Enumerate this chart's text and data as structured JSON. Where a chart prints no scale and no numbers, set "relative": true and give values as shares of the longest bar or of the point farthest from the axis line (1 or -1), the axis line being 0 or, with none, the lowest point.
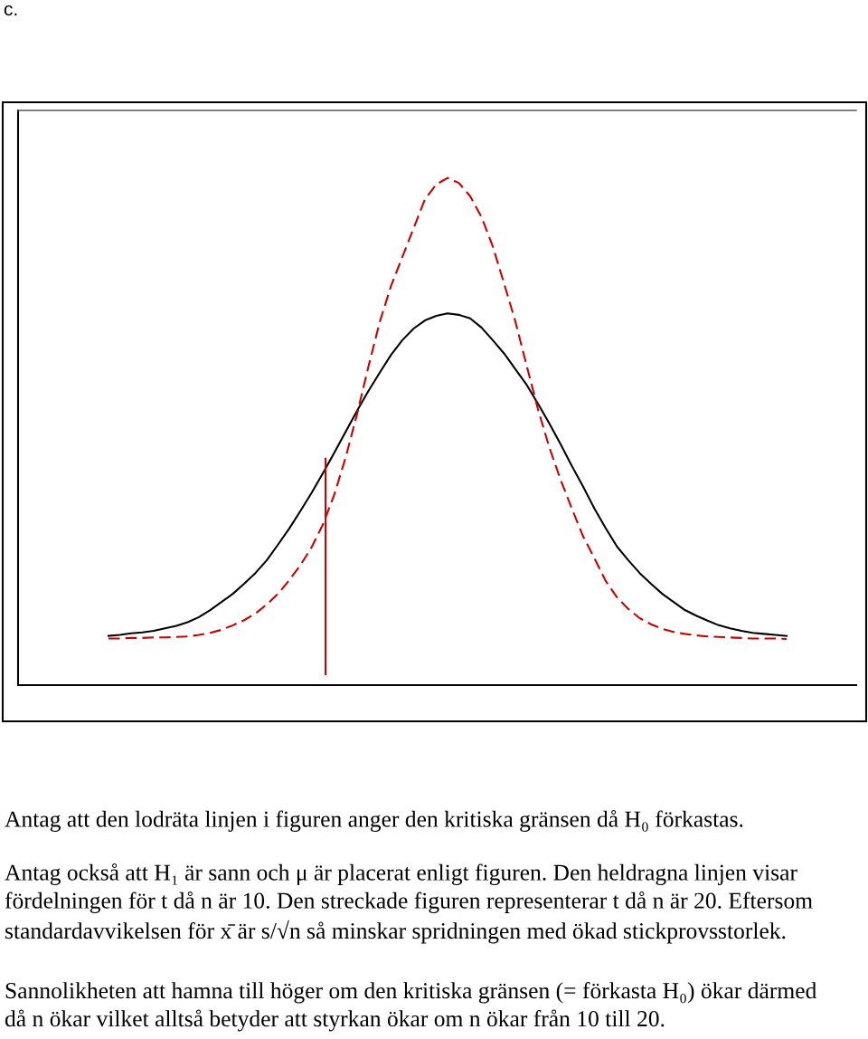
{
  "chart_data": {
    "type": "line",
    "title": "c.",
    "relative": true,
    "tick_labels": false,
    "categories": [
      null,
      null,
      null,
      null,
      null,
      null,
      null,
      null,
      null,
      null,
      null,
      null,
      null,
      null,
      null,
      null,
      null,
      null,
      null,
      null,
      null,
      null,
      null,
      null,
      null,
      null,
      null,
      null,
      null,
      null,
      null,
      null,
      null,
      null,
      null,
      null,
      null,
      null,
      null,
      null,
      null,
      null,
      null,
      null,
      null,
      null,
      null,
      null,
      null,
      null,
      null,
      null,
      null,
      null,
      null,
      null,
      null,
      null,
      null,
      null,
      null
    ],
    "series": [
      {
        "color": "#000000",
        "line_style": "solid",
        "values": [
          0.097,
          0.099,
          0.102,
          0.104,
          0.107,
          0.112,
          0.117,
          0.124,
          0.134,
          0.148,
          0.164,
          0.18,
          0.2,
          0.221,
          0.246,
          0.277,
          0.309,
          0.344,
          0.38,
          0.419,
          0.459,
          0.5,
          0.541,
          0.58,
          0.616,
          0.651,
          0.68,
          0.703,
          0.719,
          0.728,
          0.733,
          0.73,
          0.723,
          0.705,
          0.68,
          0.654,
          0.623,
          0.592,
          0.555,
          0.516,
          0.475,
          0.432,
          0.391,
          0.348,
          0.309,
          0.273,
          0.246,
          0.221,
          0.2,
          0.18,
          0.164,
          0.148,
          0.137,
          0.127,
          0.118,
          0.112,
          0.107,
          0.103,
          0.101,
          0.099,
          0.097
        ]
      },
      {
        "color": "#cc0000",
        "line_style": "dashed",
        "values": [
          0.092,
          0.092,
          0.093,
          0.093,
          0.094,
          0.094,
          0.095,
          0.096,
          0.099,
          0.103,
          0.109,
          0.118,
          0.128,
          0.141,
          0.159,
          0.18,
          0.207,
          0.237,
          0.273,
          0.318,
          0.377,
          0.45,
          0.535,
          0.628,
          0.716,
          0.787,
          0.844,
          0.901,
          0.958,
          0.987,
          1.0,
          0.99,
          0.964,
          0.923,
          0.865,
          0.792,
          0.717,
          0.63,
          0.544,
          0.469,
          0.405,
          0.348,
          0.293,
          0.25,
          0.205,
          0.173,
          0.15,
          0.132,
          0.12,
          0.111,
          0.105,
          0.101,
          0.098,
          0.096,
          0.095,
          0.094,
          0.093,
          0.092,
          0.092,
          0.092,
          0.091
        ]
      }
    ],
    "annotations": [
      "Antag att den lodräta linjen i figuren anger den kritiska gränsen då H₀ förkastas.",
      "Antag också att H₁ är sann och μ är placerat enligt figuren. Den heldragna linjen visar fördelningen för t då n är 10. Den streckade figuren representerar t då n är 20. Eftersom standardavvikelsen för x̄ är s/√n så minskar spridningen med ökad stickprovsstorlek.",
      "Sannolikheten att hamna till höger om den kritiska gränsen (= förkasta H₀) ökar därmed då n ökar vilket alltså betyder att styrkan ökar om n ökar från 10 till 20."
    ]
  }
}
